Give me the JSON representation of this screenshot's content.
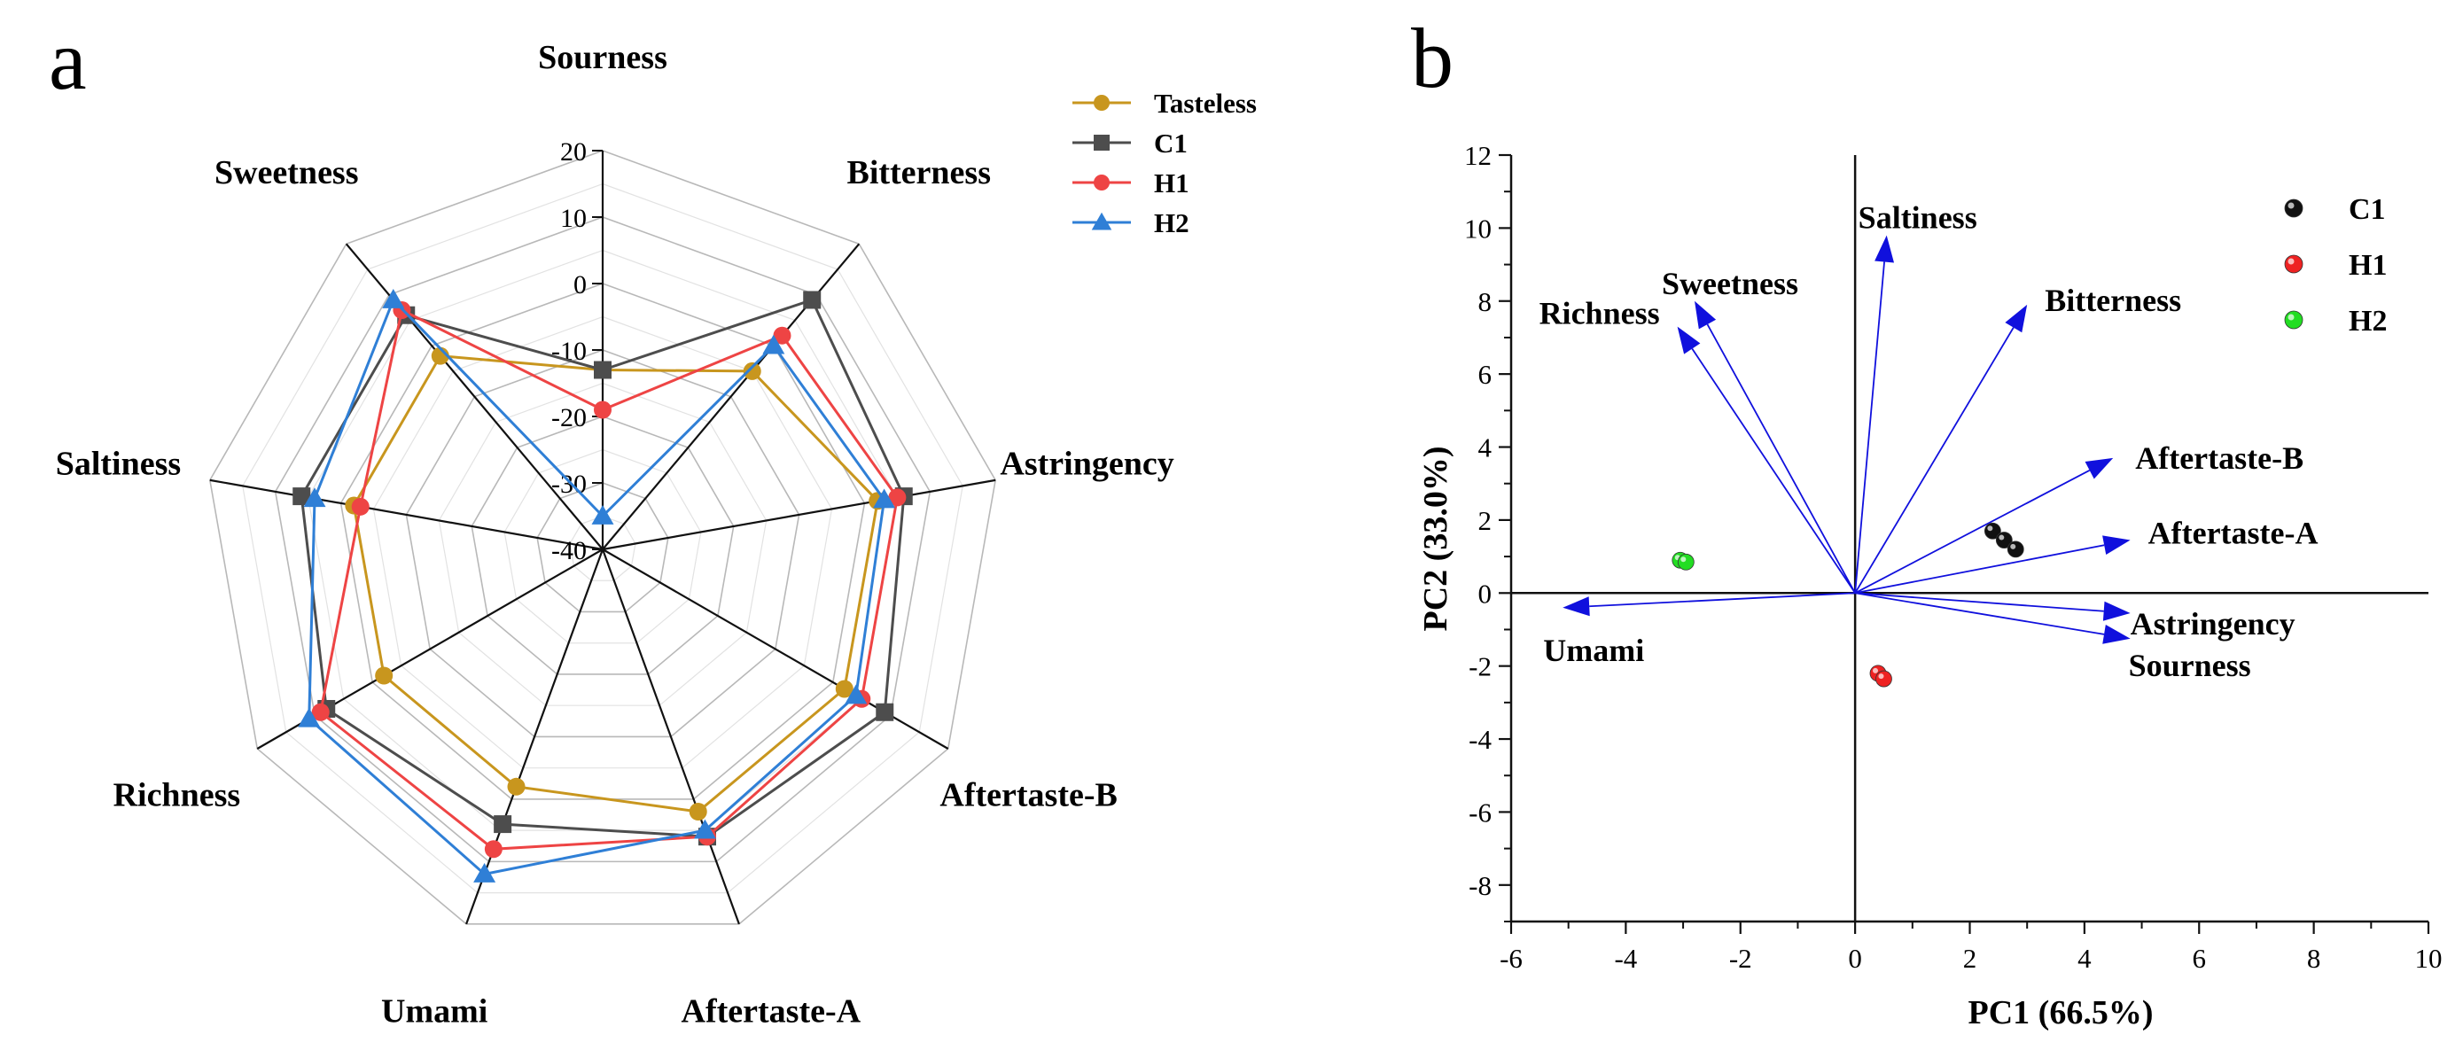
{
  "panel_labels": [
    "a",
    "b"
  ],
  "chart_data": [
    {
      "type": "radar",
      "panel": "a",
      "axes": [
        "Sourness",
        "Bitterness",
        "Astringency",
        "Aftertaste-B",
        "Aftertaste-A",
        "Umami",
        "Richness",
        "Saltiness",
        "Sweetness"
      ],
      "rlim": [
        -40,
        20
      ],
      "ticks": [
        20,
        10,
        0,
        -10,
        -20,
        -30,
        -40
      ],
      "grid": true,
      "legend_position": "top-right",
      "series": [
        {
          "name": "Tasteless",
          "color": "#c8961e",
          "marker": "circle",
          "values": [
            -13,
            -5,
            2,
            2,
            2,
            -2,
            -2,
            -2,
            -2
          ]
        },
        {
          "name": "C1",
          "color": "#4d4d4d",
          "marker": "square",
          "values": [
            -13,
            9,
            6,
            9,
            6,
            4,
            8,
            6,
            6
          ]
        },
        {
          "name": "H1",
          "color": "#ee4444",
          "marker": "circle",
          "values": [
            -19,
            2,
            5,
            5,
            6,
            8,
            9,
            -3,
            7
          ]
        },
        {
          "name": "H2",
          "color": "#2f7fd6",
          "marker": "triangle",
          "values": [
            -35,
            0,
            3,
            4,
            5,
            12,
            11,
            4,
            9
          ]
        }
      ]
    },
    {
      "type": "biplot",
      "panel": "b",
      "xlabel": "PC1 (66.5%)",
      "ylabel": "PC2 (33.0%)",
      "xlim": [
        -6,
        10
      ],
      "ylim": [
        -9,
        12
      ],
      "xticks": [
        -6,
        -4,
        -2,
        0,
        2,
        4,
        6,
        8,
        10
      ],
      "yticks": [
        12,
        10,
        8,
        6,
        4,
        2,
        0,
        -2,
        -4,
        -6,
        -8
      ],
      "legend_position": "top-right",
      "groups": [
        {
          "name": "C1",
          "color": "#111111",
          "points": [
            [
              2.4,
              1.7
            ],
            [
              2.6,
              1.45
            ],
            [
              2.8,
              1.2
            ]
          ]
        },
        {
          "name": "H1",
          "color": "#ee2222",
          "points": [
            [
              0.4,
              -2.2
            ],
            [
              0.5,
              -2.35
            ]
          ]
        },
        {
          "name": "H2",
          "color": "#22dd22",
          "points": [
            [
              -3.05,
              0.9
            ],
            [
              -2.95,
              0.85
            ]
          ]
        }
      ],
      "loadings_color": "#1010dd",
      "loadings": [
        {
          "name": "Saltiness",
          "x": 0.55,
          "y": 9.8
        },
        {
          "name": "Sweetness",
          "x": -2.8,
          "y": 8.0
        },
        {
          "name": "Richness",
          "x": -3.1,
          "y": 7.3
        },
        {
          "name": "Bitterness",
          "x": 3.0,
          "y": 7.9
        },
        {
          "name": "Aftertaste-B",
          "x": 4.5,
          "y": 3.7
        },
        {
          "name": "Aftertaste-A",
          "x": 4.8,
          "y": 1.45
        },
        {
          "name": "Astringency",
          "x": 4.8,
          "y": -0.55
        },
        {
          "name": "Sourness",
          "x": 4.8,
          "y": -1.25
        },
        {
          "name": "Umami",
          "x": -5.1,
          "y": -0.4
        }
      ]
    }
  ]
}
